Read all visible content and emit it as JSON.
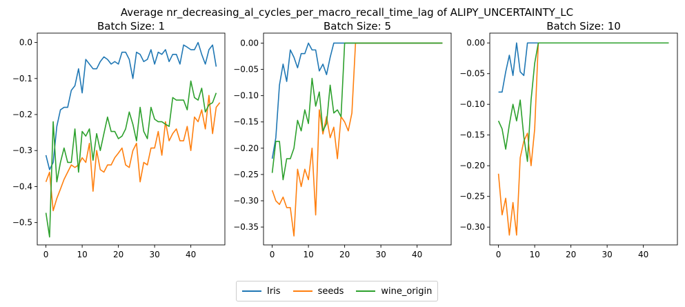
{
  "chart_data": {
    "type": "line",
    "title": "Average nr_decreasing_al_cycles_per_macro_recall_time_lag of ALIPY_UNCERTAINTY_LC",
    "legend_placement": "bottom-center",
    "legend": [
      "Iris",
      "seeds",
      "wine_origin"
    ],
    "colors": {
      "Iris": "#1f77b4",
      "seeds": "#ff7f0e",
      "wine_origin": "#2ca02c"
    },
    "panels": [
      {
        "subtitle": "Batch Size: 1",
        "xlim": [
          -2.4,
          49.4
        ],
        "ylim": [
          -0.562,
          0.026
        ],
        "xticks": [
          0,
          10,
          20,
          30,
          40
        ],
        "yticks": [
          -0.5,
          -0.4,
          -0.3,
          -0.2,
          -0.1,
          0.0
        ],
        "ytick_labels": [
          "−0.5",
          "−0.4",
          "−0.3",
          "−0.2",
          "−0.1",
          "0.0"
        ],
        "series": [
          {
            "name": "Iris",
            "values": [
              -0.313,
              -0.353,
              -0.333,
              -0.233,
              -0.187,
              -0.18,
              -0.18,
              -0.133,
              -0.12,
              -0.073,
              -0.14,
              -0.047,
              -0.06,
              -0.073,
              -0.073,
              -0.053,
              -0.04,
              -0.047,
              -0.06,
              -0.053,
              -0.06,
              -0.027,
              -0.027,
              -0.047,
              -0.1,
              -0.027,
              -0.033,
              -0.053,
              -0.047,
              -0.02,
              -0.06,
              -0.027,
              -0.033,
              -0.02,
              -0.053,
              -0.033,
              -0.033,
              -0.06,
              -0.007,
              -0.013,
              -0.02,
              -0.02,
              0.0,
              -0.033,
              -0.06,
              -0.02,
              -0.007,
              -0.067
            ]
          },
          {
            "name": "seeds",
            "values": [
              -0.387,
              -0.36,
              -0.467,
              -0.433,
              -0.407,
              -0.38,
              -0.36,
              -0.34,
              -0.347,
              -0.34,
              -0.32,
              -0.333,
              -0.28,
              -0.413,
              -0.3,
              -0.353,
              -0.36,
              -0.34,
              -0.34,
              -0.32,
              -0.307,
              -0.293,
              -0.34,
              -0.347,
              -0.3,
              -0.28,
              -0.387,
              -0.333,
              -0.34,
              -0.293,
              -0.293,
              -0.247,
              -0.313,
              -0.22,
              -0.273,
              -0.253,
              -0.24,
              -0.273,
              -0.273,
              -0.233,
              -0.3,
              -0.207,
              -0.22,
              -0.187,
              -0.24,
              -0.147,
              -0.253,
              -0.18,
              -0.167
            ]
          },
          {
            "name": "wine_origin",
            "values": [
              -0.473,
              -0.54,
              -0.22,
              -0.387,
              -0.333,
              -0.293,
              -0.333,
              -0.333,
              -0.24,
              -0.36,
              -0.247,
              -0.26,
              -0.24,
              -0.327,
              -0.253,
              -0.3,
              -0.253,
              -0.207,
              -0.247,
              -0.247,
              -0.267,
              -0.26,
              -0.24,
              -0.193,
              -0.227,
              -0.273,
              -0.18,
              -0.247,
              -0.267,
              -0.18,
              -0.213,
              -0.22,
              -0.22,
              -0.227,
              -0.233,
              -0.153,
              -0.16,
              -0.16,
              -0.16,
              -0.187,
              -0.107,
              -0.153,
              -0.16,
              -0.127,
              -0.193,
              -0.173,
              -0.167,
              -0.14
            ]
          }
        ]
      },
      {
        "subtitle": "Batch Size: 5",
        "xlim": [
          -2.4,
          49.4
        ],
        "ylim": [
          -0.384,
          0.019
        ],
        "xticks": [
          0,
          10,
          20,
          30,
          40
        ],
        "yticks": [
          -0.35,
          -0.3,
          -0.25,
          -0.2,
          -0.15,
          -0.1,
          -0.05,
          0.0
        ],
        "ytick_labels": [
          "−0.35",
          "−0.30",
          "−0.25",
          "−0.20",
          "−0.15",
          "−0.10",
          "−0.05",
          "0.00"
        ],
        "series": [
          {
            "name": "Iris",
            "values": [
              -0.22,
              -0.18,
              -0.08,
              -0.04,
              -0.073,
              -0.013,
              -0.027,
              -0.047,
              -0.02,
              -0.02,
              0.0,
              -0.013,
              -0.013,
              -0.053,
              -0.04,
              -0.06,
              -0.027,
              0.0,
              0.0,
              0.0,
              0.0,
              0.0,
              0.0,
              0.0,
              0.0,
              0.0,
              0.0,
              0.0,
              0.0,
              0.0,
              0.0,
              0.0,
              0.0,
              0.0,
              0.0,
              0.0,
              0.0,
              0.0,
              0.0,
              0.0,
              0.0,
              0.0,
              0.0,
              0.0,
              0.0,
              0.0,
              0.0,
              0.0
            ]
          },
          {
            "name": "seeds",
            "values": [
              -0.28,
              -0.3,
              -0.307,
              -0.293,
              -0.313,
              -0.313,
              -0.367,
              -0.24,
              -0.273,
              -0.24,
              -0.26,
              -0.2,
              -0.327,
              -0.127,
              -0.173,
              -0.14,
              -0.18,
              -0.16,
              -0.22,
              -0.14,
              -0.15,
              -0.167,
              -0.133,
              0.0,
              0.0,
              0.0,
              0.0,
              0.0,
              0.0,
              0.0,
              0.0,
              0.0,
              0.0,
              0.0,
              0.0,
              0.0,
              0.0,
              0.0,
              0.0,
              0.0,
              0.0,
              0.0,
              0.0,
              0.0,
              0.0,
              0.0,
              0.0,
              0.0
            ]
          },
          {
            "name": "wine_origin",
            "values": [
              -0.247,
              -0.187,
              -0.187,
              -0.26,
              -0.22,
              -0.22,
              -0.2,
              -0.147,
              -0.167,
              -0.127,
              -0.153,
              -0.067,
              -0.12,
              -0.093,
              -0.167,
              -0.153,
              -0.08,
              -0.133,
              -0.127,
              -0.14,
              0.0,
              0.0,
              0.0,
              0.0,
              0.0,
              0.0,
              0.0,
              0.0,
              0.0,
              0.0,
              0.0,
              0.0,
              0.0,
              0.0,
              0.0,
              0.0,
              0.0,
              0.0,
              0.0,
              0.0,
              0.0,
              0.0,
              0.0,
              0.0,
              0.0,
              0.0,
              0.0,
              0.0
            ]
          }
        ]
      },
      {
        "subtitle": "Batch Size: 10",
        "xlim": [
          -2.4,
          49.4
        ],
        "ylim": [
          -0.329,
          0.016
        ],
        "xticks": [
          0,
          10,
          20,
          30,
          40
        ],
        "yticks": [
          -0.3,
          -0.25,
          -0.2,
          -0.15,
          -0.1,
          -0.05,
          0.0
        ],
        "ytick_labels": [
          "−0.30",
          "−0.25",
          "−0.20",
          "−0.15",
          "−0.10",
          "−0.05",
          "0.00"
        ],
        "series": [
          {
            "name": "Iris",
            "values": [
              -0.08,
              -0.08,
              -0.047,
              -0.02,
              -0.053,
              0.0,
              -0.047,
              -0.053,
              0.0,
              0.0,
              0.0,
              0.0,
              0.0,
              0.0,
              0.0,
              0.0,
              0.0,
              0.0,
              0.0,
              0.0,
              0.0,
              0.0,
              0.0,
              0.0,
              0.0,
              0.0,
              0.0,
              0.0,
              0.0,
              0.0,
              0.0,
              0.0,
              0.0,
              0.0,
              0.0,
              0.0,
              0.0,
              0.0,
              0.0,
              0.0,
              0.0,
              0.0,
              0.0,
              0.0,
              0.0,
              0.0,
              0.0,
              0.0
            ]
          },
          {
            "name": "seeds",
            "values": [
              -0.213,
              -0.28,
              -0.253,
              -0.313,
              -0.26,
              -0.313,
              -0.187,
              -0.16,
              -0.147,
              -0.2,
              -0.14,
              0.0,
              0.0,
              0.0,
              0.0,
              0.0,
              0.0,
              0.0,
              0.0,
              0.0,
              0.0,
              0.0,
              0.0,
              0.0,
              0.0,
              0.0,
              0.0,
              0.0,
              0.0,
              0.0,
              0.0,
              0.0,
              0.0,
              0.0,
              0.0,
              0.0,
              0.0,
              0.0,
              0.0,
              0.0,
              0.0,
              0.0,
              0.0,
              0.0,
              0.0,
              0.0,
              0.0,
              0.0
            ]
          },
          {
            "name": "wine_origin",
            "values": [
              -0.127,
              -0.14,
              -0.173,
              -0.133,
              -0.1,
              -0.127,
              -0.093,
              -0.153,
              -0.193,
              -0.093,
              -0.033,
              0.0,
              0.0,
              0.0,
              0.0,
              0.0,
              0.0,
              0.0,
              0.0,
              0.0,
              0.0,
              0.0,
              0.0,
              0.0,
              0.0,
              0.0,
              0.0,
              0.0,
              0.0,
              0.0,
              0.0,
              0.0,
              0.0,
              0.0,
              0.0,
              0.0,
              0.0,
              0.0,
              0.0,
              0.0,
              0.0,
              0.0,
              0.0,
              0.0,
              0.0,
              0.0,
              0.0,
              0.0
            ]
          }
        ]
      }
    ]
  }
}
